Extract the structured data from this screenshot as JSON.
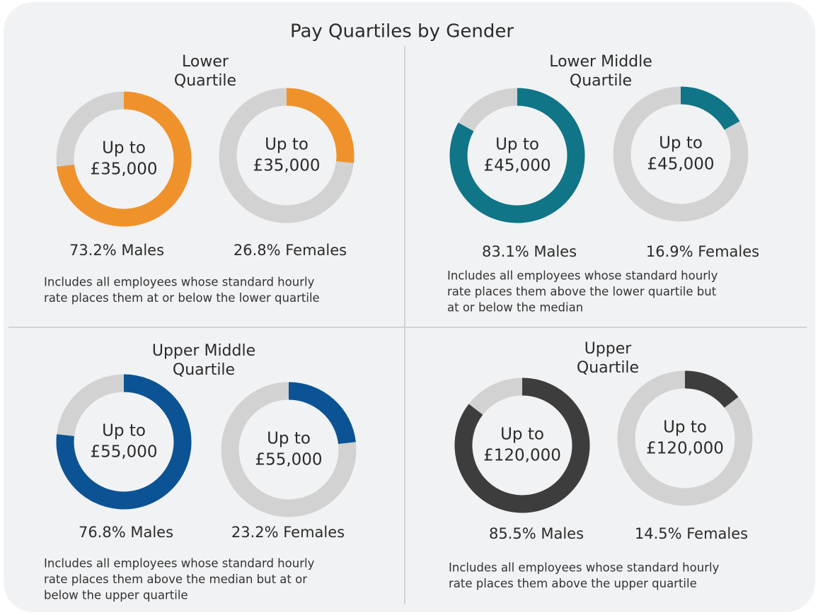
{
  "title": "Pay Quartiles by Gender",
  "chart_data": [
    {
      "type": "donut",
      "title_lines": [
        "Lower",
        "Quartile"
      ],
      "categories": [
        "Males",
        "Females"
      ],
      "values": [
        73.2,
        26.8
      ],
      "value_labels": [
        "73.2% Males",
        "26.8% Females"
      ],
      "center_label": [
        "Up to",
        "£35,000"
      ],
      "color": "#f0922b",
      "note_lines": [
        "Includes all employees whose standard hourly",
        "rate places them at or below the lower quartile"
      ]
    },
    {
      "type": "donut",
      "title_lines": [
        "Lower Middle",
        "Quartile"
      ],
      "categories": [
        "Males",
        "Females"
      ],
      "values": [
        83.1,
        16.9
      ],
      "value_labels": [
        "83.1% Males",
        "16.9% Females"
      ],
      "center_label": [
        "Up to",
        "£45,000"
      ],
      "color": "#0f7587",
      "note_lines": [
        "Includes all employees whose standard hourly",
        "rate places them above the lower quartile but",
        "at or below the median"
      ]
    },
    {
      "type": "donut",
      "title_lines": [
        "Upper Middle",
        "Quartile"
      ],
      "categories": [
        "Males",
        "Females"
      ],
      "values": [
        76.8,
        23.2
      ],
      "value_labels": [
        "76.8% Males",
        "23.2% Females"
      ],
      "center_label": [
        "Up to",
        "£55,000"
      ],
      "color": "#0b5394",
      "note_lines": [
        "Includes all employees whose standard hourly",
        "rate places them above the median but at or",
        "below the upper quartile"
      ]
    },
    {
      "type": "donut",
      "title_lines": [
        "Upper",
        "Quartile"
      ],
      "categories": [
        "Males",
        "Females"
      ],
      "values": [
        85.5,
        14.5
      ],
      "value_labels": [
        "85.5% Males",
        "14.5% Females"
      ],
      "center_label": [
        "Up to",
        "£120,000"
      ],
      "color": "#3d3d3d",
      "note_lines": [
        "Includes all employees whose standard hourly",
        "rate places them above the upper quartile"
      ]
    }
  ]
}
